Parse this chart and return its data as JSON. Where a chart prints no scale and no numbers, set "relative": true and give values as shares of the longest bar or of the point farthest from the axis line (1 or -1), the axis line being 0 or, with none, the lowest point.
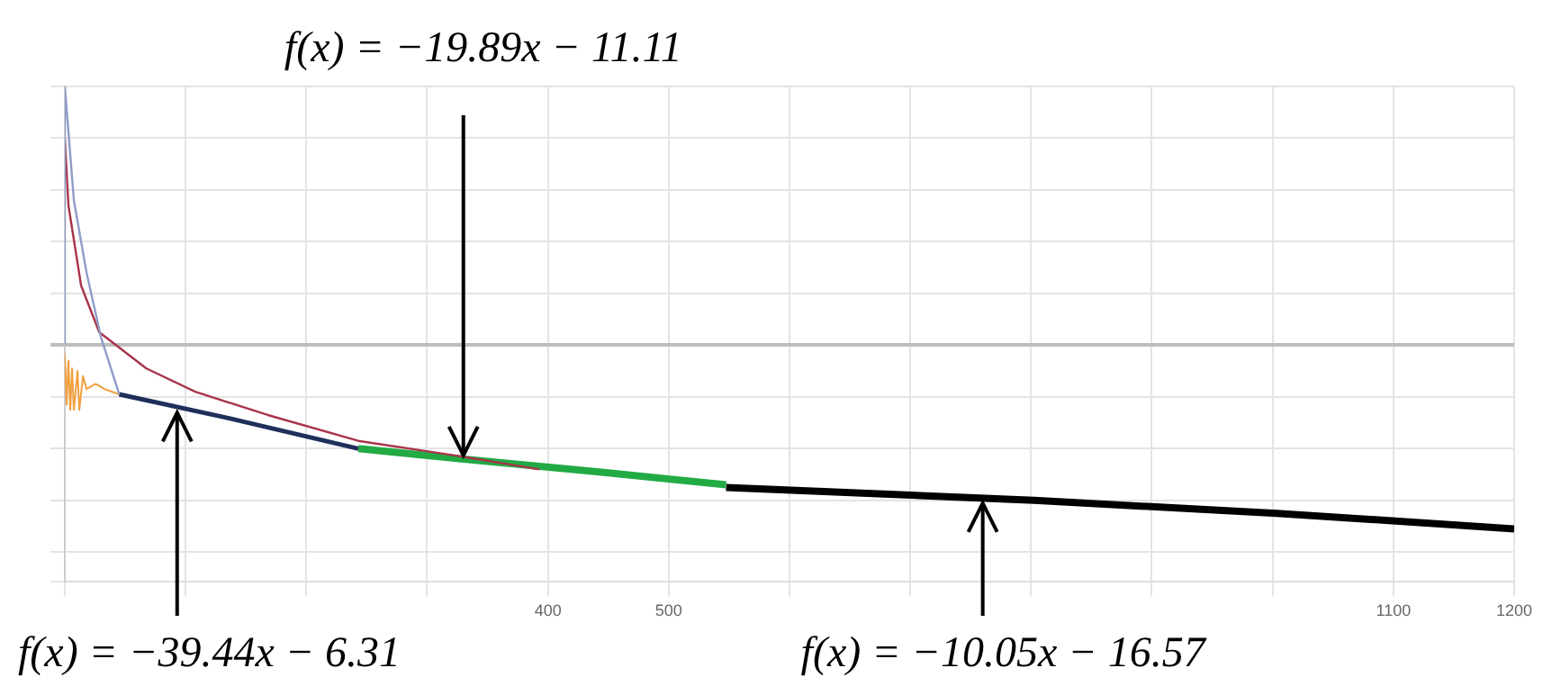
{
  "chart_data": {
    "type": "line",
    "relative": true,
    "xlim": [
      0,
      1200
    ],
    "xticks": [
      {
        "value": 0,
        "label": null
      },
      {
        "value": 100,
        "label": null
      },
      {
        "value": 200,
        "label": null
      },
      {
        "value": 300,
        "label": null
      },
      400,
      500,
      {
        "value": 600,
        "label": null
      },
      {
        "value": 700,
        "label": null
      },
      {
        "value": 800,
        "label": null
      },
      {
        "value": 900,
        "label": null
      },
      {
        "value": 1000,
        "label": null
      },
      1100,
      1200
    ],
    "tick_labels": "x",
    "grid": true,
    "legend": false,
    "marker": "none",
    "line_style": "solid",
    "series": [
      {
        "color": "#8f9cc8",
        "x": [
          0,
          0,
          7.5,
          18,
          30,
          45
        ],
        "values": [
          0,
          1.0,
          0.56,
          0.28,
          0.03,
          -0.19
        ]
      },
      {
        "color": "#a8344a",
        "x": [
          0,
          3,
          13.5,
          28.5,
          67.5,
          108,
          168,
          243,
          328,
          393
        ],
        "values": [
          0.8,
          0.54,
          0.23,
          0.05,
          -0.09,
          -0.18,
          -0.27,
          -0.37,
          -0.43,
          -0.48
        ]
      },
      {
        "color": "#f0a040",
        "x": [
          0,
          1.5,
          3,
          4.5,
          6,
          7.5,
          10.5,
          12,
          15,
          18,
          25.5,
          33,
          45
        ],
        "values": [
          -0.03,
          -0.23,
          -0.06,
          -0.25,
          -0.09,
          -0.25,
          -0.1,
          -0.25,
          -0.12,
          -0.17,
          -0.15,
          -0.17,
          -0.19
        ]
      },
      {
        "color": "#1f2f5a",
        "x": [
          45,
          133.5,
          243
        ],
        "values": [
          -0.19,
          -0.28,
          -0.4
        ]
      },
      {
        "color": "#22aa44",
        "x": [
          243,
          328.5,
          442.5,
          547.5
        ],
        "values": [
          -0.4,
          -0.44,
          -0.49,
          -0.54
        ]
      },
      {
        "color": "#000000",
        "x": [
          547.5,
          802.5,
          1003.5,
          1200
        ],
        "values": [
          -0.55,
          -0.6,
          -0.65,
          -0.71
        ]
      }
    ],
    "annotations": [
      {
        "text": "f(x) = −39.44x − 6.31",
        "x": 93,
        "y": -0.24
      },
      {
        "text": "f(x) = −19.89x − 11.11",
        "x": 330,
        "y": -0.44
      },
      {
        "text": "f(x) = −10.05x − 16.57",
        "x": 760,
        "y": -0.59
      }
    ]
  }
}
